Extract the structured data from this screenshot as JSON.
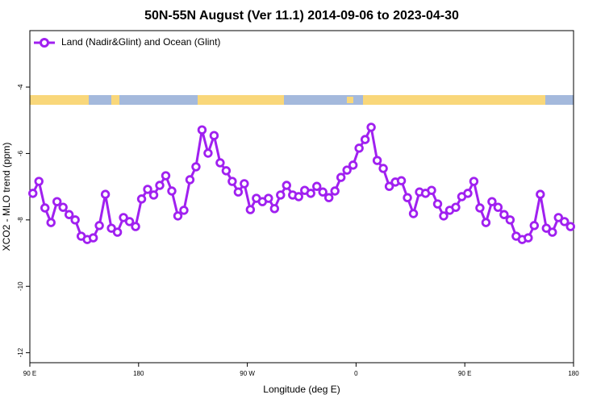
{
  "chart_data": {
    "type": "line",
    "title": "50N-55N August (Ver 11.1)   2014-09-06 to 2023-04-30",
    "x_label": "Longitude (deg E)",
    "y_label": "XCO2 - MLO trend (ppm)",
    "xlim": [
      90,
      540
    ],
    "ylim": [
      -12.3,
      -2.3
    ],
    "xticks": [
      {
        "value": 90,
        "label": "90 E"
      },
      {
        "value": 180,
        "label": "180"
      },
      {
        "value": 270,
        "label": "90 W"
      },
      {
        "value": 360,
        "label": "0"
      },
      {
        "value": 450,
        "label": "90 E"
      },
      {
        "value": 540,
        "label": "180"
      }
    ],
    "yticks": [
      -4,
      -6,
      -8,
      -10,
      -12
    ],
    "legend": "upper left",
    "x": [
      92.5,
      97.5,
      102.5,
      107.5,
      112.5,
      117.5,
      122.5,
      127.5,
      132.5,
      137.5,
      142.5,
      147.5,
      152.5,
      157.5,
      162.5,
      167.5,
      172.5,
      177.5,
      182.5,
      187.5,
      192.5,
      197.5,
      202.5,
      207.5,
      212.5,
      217.5,
      222.5,
      227.5,
      232.5,
      237.5,
      242.5,
      247.5,
      252.5,
      257.5,
      262.5,
      267.5,
      272.5,
      277.5,
      282.5,
      287.5,
      292.5,
      297.5,
      302.5,
      307.5,
      312.5,
      317.5,
      322.5,
      327.5,
      332.5,
      337.5,
      342.5,
      347.5,
      352.5,
      357.5,
      362.5,
      367.5,
      372.5,
      377.5,
      382.5,
      387.5,
      392.5,
      397.5,
      402.5,
      407.5,
      412.5,
      417.5,
      422.5,
      427.5,
      432.5,
      437.5,
      442.5,
      447.5,
      452.5,
      457.5,
      462.5,
      467.5,
      472.5,
      477.5,
      482.5,
      487.5,
      492.5,
      497.5,
      502.5,
      507.5,
      512.5,
      517.5,
      522.5,
      527.5,
      532.5,
      537.5
    ],
    "series": [
      {
        "name": "Land (Nadir&Glint) and Ocean (Glint)",
        "color": "#a020f0",
        "values": [
          -7.2,
          -6.84,
          -7.64,
          -8.08,
          -7.45,
          -7.62,
          -7.84,
          -8.0,
          -8.49,
          -8.59,
          -8.54,
          -8.17,
          -7.23,
          -8.25,
          -8.37,
          -7.93,
          -8.05,
          -8.2,
          -7.37,
          -7.08,
          -7.25,
          -6.96,
          -6.67,
          -7.13,
          -7.88,
          -7.71,
          -6.79,
          -6.4,
          -5.29,
          -5.99,
          -5.46,
          -6.28,
          -6.52,
          -6.84,
          -7.16,
          -6.91,
          -7.69,
          -7.35,
          -7.45,
          -7.35,
          -7.66,
          -7.25,
          -6.96,
          -7.25,
          -7.3,
          -7.11,
          -7.2,
          -6.99,
          -7.16,
          -7.33,
          -7.13,
          -6.72,
          -6.5,
          -6.35,
          -5.84,
          -5.58,
          -5.21,
          -6.21,
          -6.45,
          -6.99,
          -6.86,
          -6.82,
          -7.33,
          -7.81,
          -7.16,
          -7.2,
          -7.11,
          -7.52,
          -7.88,
          -7.71,
          -7.62,
          -7.3,
          -7.2,
          -6.84,
          -7.64,
          -8.08,
          -7.45,
          -7.62,
          -7.84,
          -8.0,
          -8.49,
          -8.59,
          -8.54,
          -8.17,
          -7.23,
          -8.25,
          -8.37,
          -7.93,
          -8.05,
          -8.2
        ]
      }
    ]
  }
}
